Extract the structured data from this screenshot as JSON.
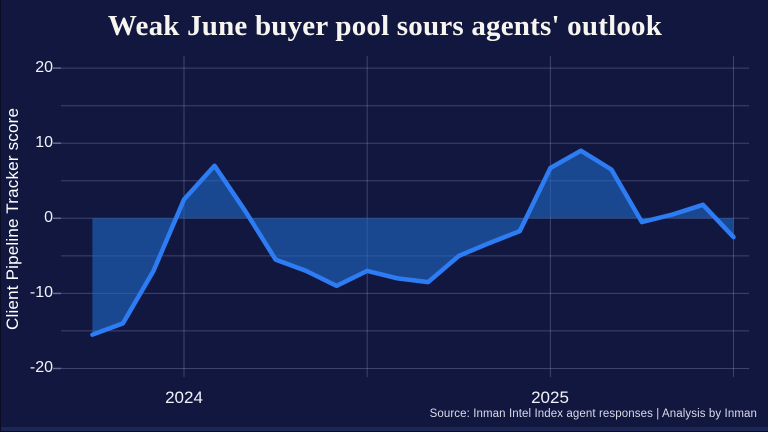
{
  "title": "Weak June buyer pool sours agents' outlook",
  "source": "Source: Inman Intel Index agent responses | Analysis by Inman",
  "y_axis": {
    "label": "Client Pipeline Tracker score",
    "ticks": [
      "20",
      "10",
      "0",
      "-10",
      "-20"
    ]
  },
  "x_axis": {
    "ticks": [
      "2024",
      "2025"
    ]
  },
  "chart_data": {
    "type": "line",
    "title": "Weak June buyer pool sours agents' outlook",
    "ylabel": "Client Pipeline Tracker score",
    "ylim": [
      -20,
      20
    ],
    "ytick_values": [
      20,
      10,
      0,
      -10,
      -20
    ],
    "grid": true,
    "grid_interval": 5,
    "baseline_fill": 0,
    "xtick_labels": [
      "2024",
      "2025"
    ],
    "x": [
      "Oct 2023",
      "Nov 2023",
      "Dec 2023",
      "Jan 2024",
      "Feb 2024",
      "Mar 2024",
      "Apr 2024",
      "May 2024",
      "Jun 2024",
      "Jul 2024",
      "Aug 2024",
      "Sep 2024",
      "Oct 2024",
      "Nov 2024",
      "Dec 2024",
      "Jan 2025",
      "Feb 2025",
      "Mar 2025",
      "Apr 2025",
      "May 2025",
      "Jun 2025",
      "Jul 2025"
    ],
    "values": [
      -15.5,
      -14,
      -7,
      2.5,
      7,
      1,
      -5.5,
      -7,
      -9,
      -7,
      -8,
      -8.5,
      -5,
      -3.3,
      -1.7,
      6.7,
      9,
      6.5,
      -0.5,
      0.5,
      1.8,
      -2.5
    ],
    "colors": {
      "background": "#121740",
      "line": "#2e7cf3",
      "fill": "#1e69c8",
      "grid": "#9aa3cc",
      "text": "#f2f3f8",
      "title": "#f7f5ef"
    }
  }
}
